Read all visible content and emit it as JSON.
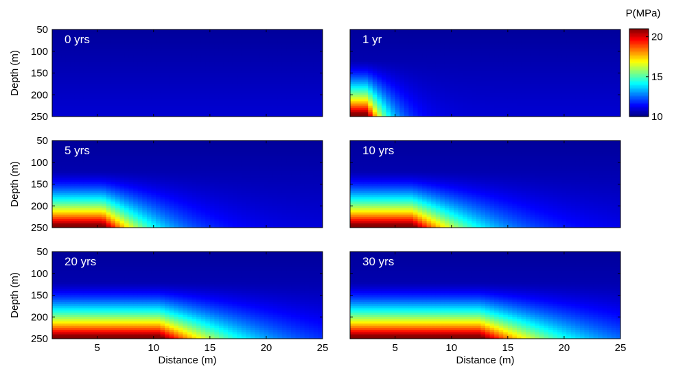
{
  "chart_data": {
    "type": "heatmap",
    "xlabel": "Distance (m)",
    "ylabel": "Depth (m)",
    "xlim": [
      1,
      25
    ],
    "ylim": [
      50,
      250
    ],
    "x_ticks": [
      5,
      10,
      15,
      20,
      25
    ],
    "y_ticks": [
      50,
      100,
      150,
      200,
      250
    ],
    "colormap": "jet",
    "colorbar": {
      "title": "P(MPa)",
      "range": [
        10,
        21
      ],
      "ticks": [
        10,
        15,
        20
      ]
    },
    "panels": [
      {
        "label": "0 yrs",
        "front_x": 0,
        "spread": 0
      },
      {
        "label": "1 yr",
        "front_x": 2.5,
        "spread": 3
      },
      {
        "label": "5 yrs",
        "front_x": 5.5,
        "spread": 7
      },
      {
        "label": "10 yrs",
        "front_x": 6.5,
        "spread": 9
      },
      {
        "label": "20 yrs",
        "front_x": 10.5,
        "spread": 11
      },
      {
        "label": "30 yrs",
        "front_x": 12.5,
        "spread": 12
      }
    ]
  }
}
